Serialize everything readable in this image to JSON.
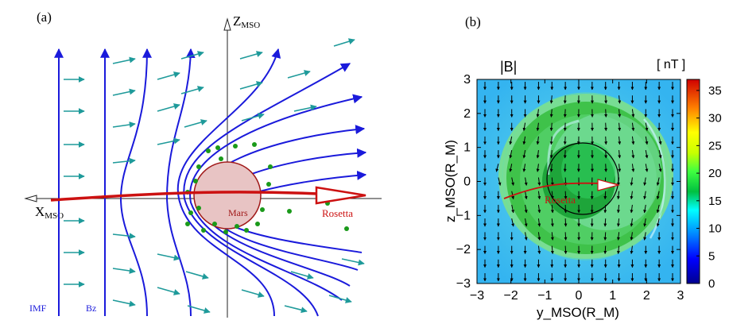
{
  "panel_a": {
    "label": "(a)",
    "axis_z": "Z",
    "axis_z_sub": "MSO",
    "axis_x": "X",
    "axis_x_sub": "MSO",
    "planet_label": "Mars",
    "trajectory_label": "Rosetta",
    "imf_label": "IMF",
    "bz_label": "Bz",
    "colors": {
      "field_lines": "#1a1adb",
      "arrows": "#1e9a9a",
      "trajectory": "#cc1111",
      "planet_fill": "#e8c4c4",
      "planet_edge": "#a01818",
      "particles": "#1a9a1a"
    }
  },
  "panel_b": {
    "label": "(b)",
    "title": "|B|",
    "units": "[ nT ]",
    "xlabel": "y_MSO(R_M)",
    "ylabel": "z_MSO(R_M)",
    "xticks": [
      "−3",
      "−2",
      "−1",
      "0",
      "1",
      "2",
      "3"
    ],
    "yticks": [
      "3",
      "2",
      "1",
      "0",
      "−1",
      "−2",
      "−3"
    ],
    "colorbar_ticks": [
      "35",
      "30",
      "25",
      "20",
      "15",
      "10",
      "5",
      "0"
    ],
    "trajectory_label": "Rosetta",
    "xlim": [
      -3,
      3
    ],
    "ylim": [
      -3,
      3
    ],
    "clim": [
      0,
      37
    ]
  }
}
